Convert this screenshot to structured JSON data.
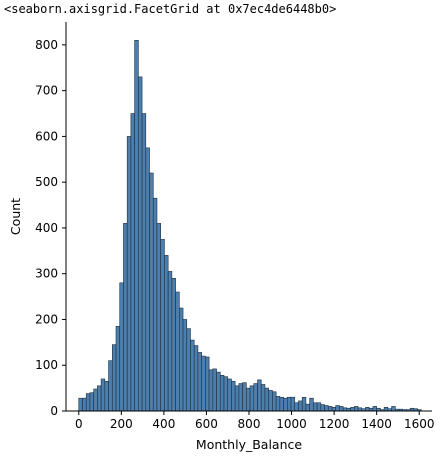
{
  "output_text": "<seaborn.axisgrid.FacetGrid at 0x7ec4de6448b0>",
  "colors": {
    "bar_fill": "#4c7fad",
    "bar_edge": "#1f2f3f",
    "axis": "#000000"
  },
  "chart_data": {
    "type": "bar",
    "title": "",
    "xlabel": "Monthly_Balance",
    "ylabel": "Count",
    "xlim": [
      -60,
      1660
    ],
    "ylim": [
      0,
      850
    ],
    "x_ticks": [
      0,
      200,
      400,
      600,
      800,
      1000,
      1200,
      1400,
      1600
    ],
    "y_ticks": [
      0,
      100,
      200,
      300,
      400,
      500,
      600,
      700,
      800
    ],
    "grid": false,
    "legend": "none",
    "bin_width": 17.5,
    "bin_starts": [
      0,
      17.5,
      35,
      52.5,
      70,
      87.5,
      105,
      122.5,
      140,
      157.5,
      175,
      192.5,
      210,
      227.5,
      245,
      262.5,
      280,
      297.5,
      315,
      332.5,
      350,
      367.5,
      385,
      402.5,
      420,
      437.5,
      455,
      472.5,
      490,
      507.5,
      525,
      542.5,
      560,
      577.5,
      595,
      612.5,
      630,
      647.5,
      665,
      682.5,
      700,
      717.5,
      735,
      752.5,
      770,
      787.5,
      805,
      822.5,
      840,
      857.5,
      875,
      892.5,
      910,
      927.5,
      945,
      962.5,
      980,
      997.5,
      1015,
      1032.5,
      1050,
      1067.5,
      1085,
      1102.5,
      1120,
      1137.5,
      1155,
      1172.5,
      1190,
      1207.5,
      1225,
      1242.5,
      1260,
      1277.5,
      1295,
      1312.5,
      1330,
      1347.5,
      1365,
      1382.5,
      1400,
      1417.5,
      1435,
      1452.5,
      1470,
      1487.5,
      1505,
      1522.5,
      1540,
      1557.5,
      1575,
      1592.5
    ],
    "values": [
      28,
      28,
      38,
      40,
      48,
      55,
      70,
      65,
      110,
      145,
      185,
      280,
      410,
      600,
      650,
      810,
      730,
      650,
      575,
      520,
      465,
      410,
      375,
      340,
      305,
      290,
      260,
      225,
      200,
      180,
      155,
      143,
      128,
      120,
      118,
      90,
      92,
      85,
      78,
      75,
      70,
      65,
      55,
      60,
      62,
      50,
      55,
      60,
      68,
      58,
      50,
      45,
      42,
      32,
      30,
      28,
      30,
      30,
      18,
      22,
      30,
      15,
      28,
      18,
      18,
      14,
      12,
      10,
      8,
      12,
      10,
      7,
      6,
      8,
      10,
      7,
      5,
      8,
      6,
      10,
      6,
      3,
      8,
      5,
      10,
      4,
      4,
      3,
      3,
      6,
      5,
      3
    ]
  }
}
